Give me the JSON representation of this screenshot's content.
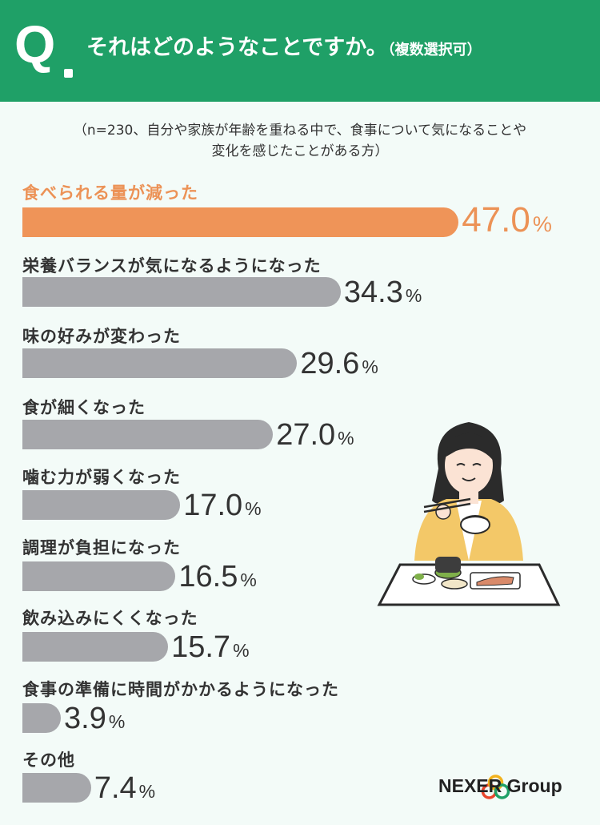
{
  "header": {
    "q_letter": "Q",
    "question": "それはどのようなことですか。",
    "note": "（複数選択可）"
  },
  "subtitle": {
    "line1": "（n=230、自分や家族が年齢を重ねる中で、食事について気になることや",
    "line2": "変化を感じたことがある方）"
  },
  "colors": {
    "header": "#1fa067",
    "highlight": "#ef9458",
    "bar": "#a6a7ab",
    "background": "#f3fbf8"
  },
  "chart_data": {
    "type": "bar",
    "orientation": "horizontal",
    "unit": "%",
    "categories": [
      "食べられる量が減った",
      "栄養バランスが気になるようになった",
      "味の好みが変わった",
      "食が細くなった",
      "噛む力が弱くなった",
      "調理が負担になった",
      "飲み込みにくくなった",
      "食事の準備に時間がかかるようになった",
      "その他"
    ],
    "values": [
      47.0,
      34.3,
      29.6,
      27.0,
      17.0,
      16.5,
      15.7,
      3.9,
      7.4
    ],
    "value_labels": [
      "47.0",
      "34.3",
      "29.6",
      "27.0",
      "17.0",
      "16.5",
      "15.7",
      "3.9",
      "7.4"
    ],
    "highlight_index": 0
  },
  "illustration": "woman-eating-icon",
  "logo": {
    "icon": "nexer-logo-icon",
    "text": "NEXER Group"
  }
}
